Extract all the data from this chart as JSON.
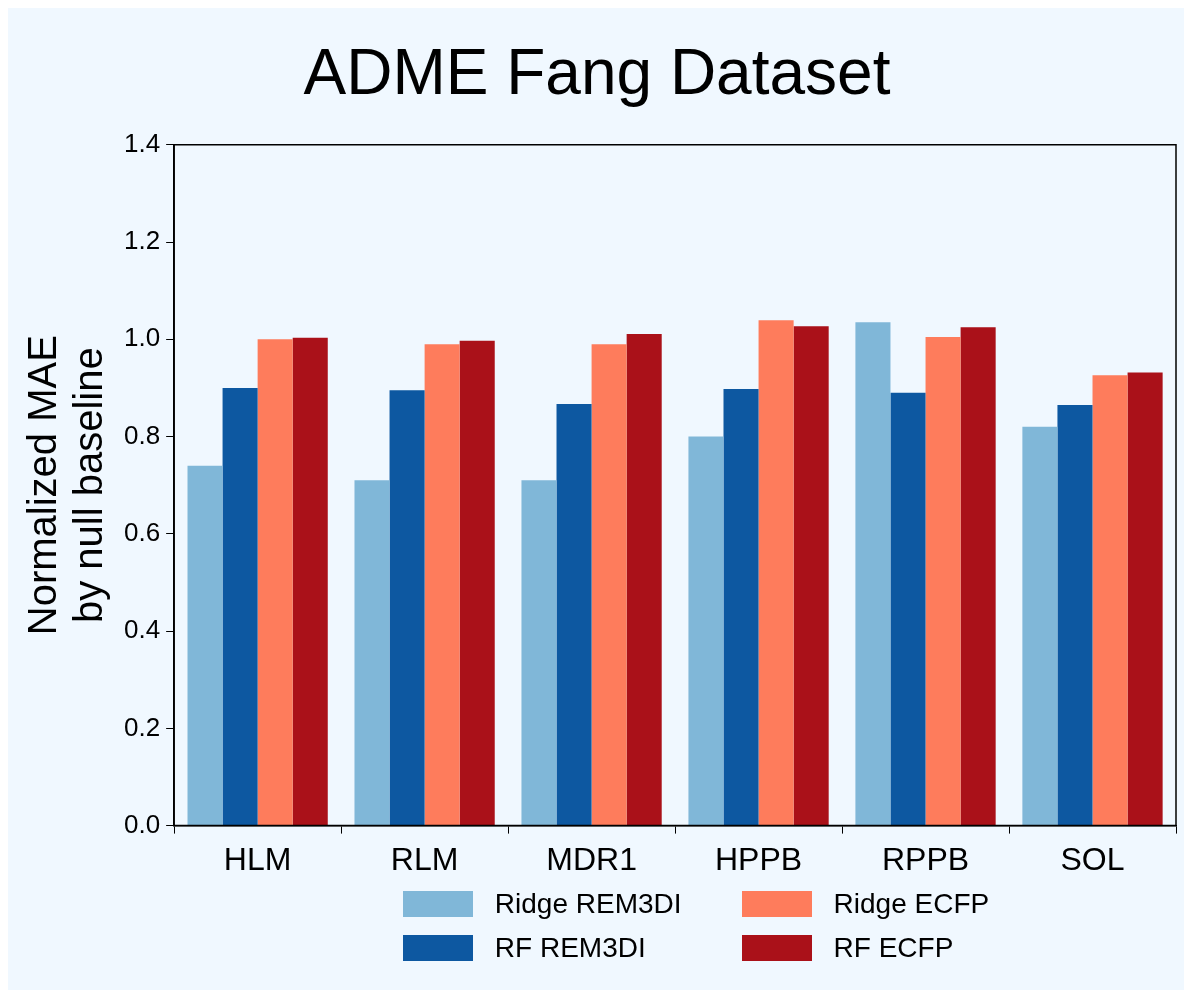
{
  "chart_data": {
    "type": "bar",
    "title": "ADME Fang Dataset",
    "ylabel": "Normalized MAE\nby null baseline",
    "categories": [
      "HLM",
      "RLM",
      "MDR1",
      "HPPB",
      "RPPB",
      "SOL"
    ],
    "series": [
      {
        "name": "Ridge REM3DI",
        "color": "#80b7d8",
        "values": [
          0.74,
          0.71,
          0.71,
          0.8,
          1.035,
          0.82
        ]
      },
      {
        "name": "RF REM3DI",
        "color": "#0d58a1",
        "values": [
          0.9,
          0.895,
          0.867,
          0.898,
          0.89,
          0.865
        ]
      },
      {
        "name": "Ridge ECFP",
        "color": "#fe7c5c",
        "values": [
          1.0,
          0.99,
          0.99,
          1.039,
          1.005,
          0.926
        ]
      },
      {
        "name": "RF ECFP",
        "color": "#aa1119",
        "values": [
          1.003,
          0.997,
          1.011,
          1.027,
          1.025,
          0.932
        ]
      }
    ],
    "ylim": [
      0,
      1.4
    ],
    "yticks": [
      {
        "value": 0,
        "label": "0.0"
      },
      0.2,
      0.4,
      0.6,
      0.8,
      {
        "value": 1,
        "label": "1.0"
      },
      1.2,
      1.4
    ],
    "legend": "bottom",
    "grid": false
  }
}
